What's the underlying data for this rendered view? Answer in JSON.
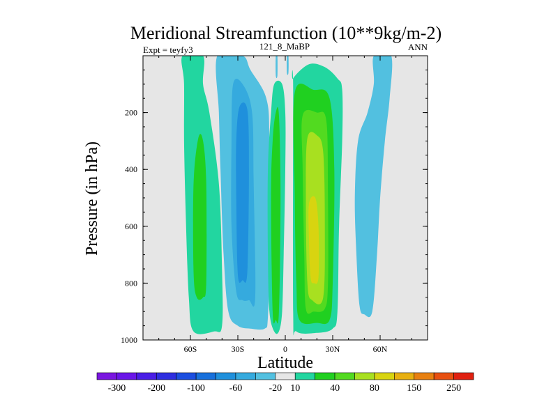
{
  "chart_data": {
    "type": "heatmap",
    "title": "Meridional Streamfunction (10**9kg/m-2)",
    "subtitle_left": "Expt = teyfy3",
    "subtitle_center": "121_8_MaBP",
    "subtitle_right": "ANN",
    "xlabel": "Latitude",
    "ylabel": "Pressure (in hPa)",
    "xlim": [
      -90,
      90
    ],
    "ylim": [
      1000,
      0
    ],
    "x_ticks": [
      {
        "value": -60,
        "label": "60S"
      },
      {
        "value": -30,
        "label": "30S"
      },
      {
        "value": 0,
        "label": "0"
      },
      {
        "value": 30,
        "label": "30N"
      },
      {
        "value": 60,
        "label": "60N"
      }
    ],
    "y_ticks": [
      {
        "value": 200,
        "label": "200"
      },
      {
        "value": 400,
        "label": "400"
      },
      {
        "value": 600,
        "label": "600"
      },
      {
        "value": 800,
        "label": "800"
      },
      {
        "value": 1000,
        "label": "1000"
      }
    ],
    "background_color": "#e6e6e6",
    "colorbar": {
      "colors": [
        "#7a16e0",
        "#6a16e8",
        "#4a1ee6",
        "#2e2ee0",
        "#1b4ee0",
        "#1770dc",
        "#1f90dc",
        "#35aade",
        "#52c0e0",
        "#e6e6e6",
        "#22d6a0",
        "#20d020",
        "#52da20",
        "#a8e020",
        "#d8d410",
        "#e8b010",
        "#e88010",
        "#e85010",
        "#e02010"
      ],
      "labels": [
        {
          "after_index": 0,
          "text": "-300"
        },
        {
          "after_index": 2,
          "text": "-200"
        },
        {
          "after_index": 4,
          "text": "-100"
        },
        {
          "after_index": 6,
          "text": "-60"
        },
        {
          "after_index": 8,
          "text": "-20"
        },
        {
          "after_index": 9,
          "text": "10"
        },
        {
          "after_index": 11,
          "text": "40"
        },
        {
          "after_index": 13,
          "text": "80"
        },
        {
          "after_index": 15,
          "text": "150"
        },
        {
          "after_index": 17,
          "text": "250"
        }
      ]
    },
    "contours": [
      {
        "name": "sh-outer-green",
        "color": "#22d6a0",
        "points": [
          [
            -65,
            0
          ],
          [
            -52,
            0
          ],
          [
            -52,
            100
          ],
          [
            -48,
            200
          ],
          [
            -42,
            450
          ],
          [
            -40,
            750
          ],
          [
            -40,
            950
          ],
          [
            -45,
            970
          ],
          [
            -58,
            970
          ],
          [
            -61,
            850
          ],
          [
            -63,
            550
          ],
          [
            -64,
            300
          ],
          [
            -64,
            100
          ]
        ]
      },
      {
        "name": "sh-inner-green",
        "color": "#20d020",
        "points": [
          [
            -55,
            290
          ],
          [
            -52,
            300
          ],
          [
            -50,
            450
          ],
          [
            -50,
            800
          ],
          [
            -52,
            850
          ],
          [
            -56,
            850
          ],
          [
            -58,
            760
          ],
          [
            -58,
            450
          ]
        ]
      },
      {
        "name": "sh-outer-cyan",
        "color": "#52c0e0",
        "points": [
          [
            -43,
            0
          ],
          [
            -27,
            0
          ],
          [
            -22,
            50
          ],
          [
            -12,
            150
          ],
          [
            -10,
            300
          ],
          [
            -10,
            700
          ],
          [
            -11,
            920
          ],
          [
            -13,
            960
          ],
          [
            -22,
            960
          ],
          [
            -30,
            950
          ],
          [
            -36,
            900
          ],
          [
            -39,
            700
          ],
          [
            -41,
            400
          ],
          [
            -42,
            200
          ]
        ]
      },
      {
        "name": "sh-blue",
        "color": "#35aade",
        "points": [
          [
            -33,
            100
          ],
          [
            -27,
            100
          ],
          [
            -21,
            200
          ],
          [
            -20,
            450
          ],
          [
            -19,
            850
          ],
          [
            -23,
            860
          ],
          [
            -27,
            860
          ],
          [
            -31,
            830
          ],
          [
            -34,
            600
          ],
          [
            -34,
            300
          ]
        ]
      },
      {
        "name": "sh-deep-blue",
        "color": "#1f90dc",
        "points": [
          [
            -29,
            180
          ],
          [
            -24,
            190
          ],
          [
            -23,
            400
          ],
          [
            -24,
            760
          ],
          [
            -27,
            790
          ],
          [
            -30,
            770
          ],
          [
            -31,
            500
          ],
          [
            -31,
            300
          ]
        ]
      },
      {
        "name": "eq-outer-green",
        "color": "#22d6a0",
        "points": [
          [
            -7,
            100
          ],
          [
            -2,
            100
          ],
          [
            0,
            200
          ],
          [
            0,
            400
          ],
          [
            -1,
            700
          ],
          [
            -2,
            900
          ],
          [
            -4,
            970
          ],
          [
            -7,
            970
          ],
          [
            -10,
            900
          ],
          [
            -11,
            700
          ],
          [
            -11,
            400
          ],
          [
            -9,
            200
          ]
        ]
      },
      {
        "name": "eq-inner-green",
        "color": "#20d020",
        "points": [
          [
            -6,
            200
          ],
          [
            -4,
            210
          ],
          [
            -3,
            500
          ],
          [
            -4,
            900
          ],
          [
            -6,
            930
          ],
          [
            -8,
            900
          ],
          [
            -9,
            500
          ],
          [
            -8,
            300
          ]
        ]
      },
      {
        "name": "eq-cyan-strip",
        "color": "#52c0e0",
        "points": [
          [
            -6,
            0
          ],
          [
            -5,
            0
          ],
          [
            -5,
            70
          ],
          [
            -6,
            70
          ]
        ]
      },
      {
        "name": "eq-cyan-strip-2",
        "color": "#52c0e0",
        "points": [
          [
            1,
            0
          ],
          [
            2,
            0
          ],
          [
            2,
            60
          ],
          [
            1,
            60
          ]
        ]
      },
      {
        "name": "nh-outer-green",
        "color": "#22d6a0",
        "points": [
          [
            5,
            80
          ],
          [
            15,
            30
          ],
          [
            25,
            40
          ],
          [
            33,
            80
          ],
          [
            36,
            120
          ],
          [
            36,
            300
          ],
          [
            34,
            600
          ],
          [
            33,
            900
          ],
          [
            30,
            960
          ],
          [
            20,
            975
          ],
          [
            7,
            970
          ],
          [
            5,
            900
          ],
          [
            5,
            120
          ]
        ]
      },
      {
        "name": "nh-green",
        "color": "#20d020",
        "points": [
          [
            6,
            130
          ],
          [
            18,
            120
          ],
          [
            28,
            150
          ],
          [
            31,
            400
          ],
          [
            30,
            800
          ],
          [
            28,
            930
          ],
          [
            20,
            940
          ],
          [
            9,
            930
          ],
          [
            7,
            800
          ],
          [
            6,
            500
          ]
        ]
      },
      {
        "name": "nh-light-green",
        "color": "#52da20",
        "points": [
          [
            11,
            210
          ],
          [
            20,
            200
          ],
          [
            26,
            230
          ],
          [
            27,
            500
          ],
          [
            27,
            800
          ],
          [
            25,
            890
          ],
          [
            18,
            900
          ],
          [
            13,
            890
          ],
          [
            12,
            700
          ],
          [
            11,
            400
          ]
        ]
      },
      {
        "name": "nh-yellow-green",
        "color": "#a8e020",
        "points": [
          [
            14,
            290
          ],
          [
            20,
            280
          ],
          [
            24,
            340
          ],
          [
            25,
            600
          ],
          [
            24,
            850
          ],
          [
            17,
            860
          ],
          [
            14,
            800
          ],
          [
            13,
            500
          ]
        ]
      },
      {
        "name": "nh-yellow",
        "color": "#d8d410",
        "points": [
          [
            15,
            520
          ],
          [
            19,
            500
          ],
          [
            21,
            600
          ],
          [
            21,
            780
          ],
          [
            18,
            800
          ],
          [
            16,
            780
          ],
          [
            15,
            650
          ]
        ]
      },
      {
        "name": "nh-cyan",
        "color": "#52c0e0",
        "points": [
          [
            56,
            0
          ],
          [
            67,
            0
          ],
          [
            66,
            150
          ],
          [
            63,
            300
          ],
          [
            60,
            500
          ],
          [
            58,
            700
          ],
          [
            55,
            900
          ],
          [
            50,
            910
          ],
          [
            47,
            880
          ],
          [
            45,
            700
          ],
          [
            44,
            500
          ],
          [
            46,
            300
          ],
          [
            52,
            200
          ],
          [
            56,
            100
          ]
        ]
      }
    ]
  }
}
